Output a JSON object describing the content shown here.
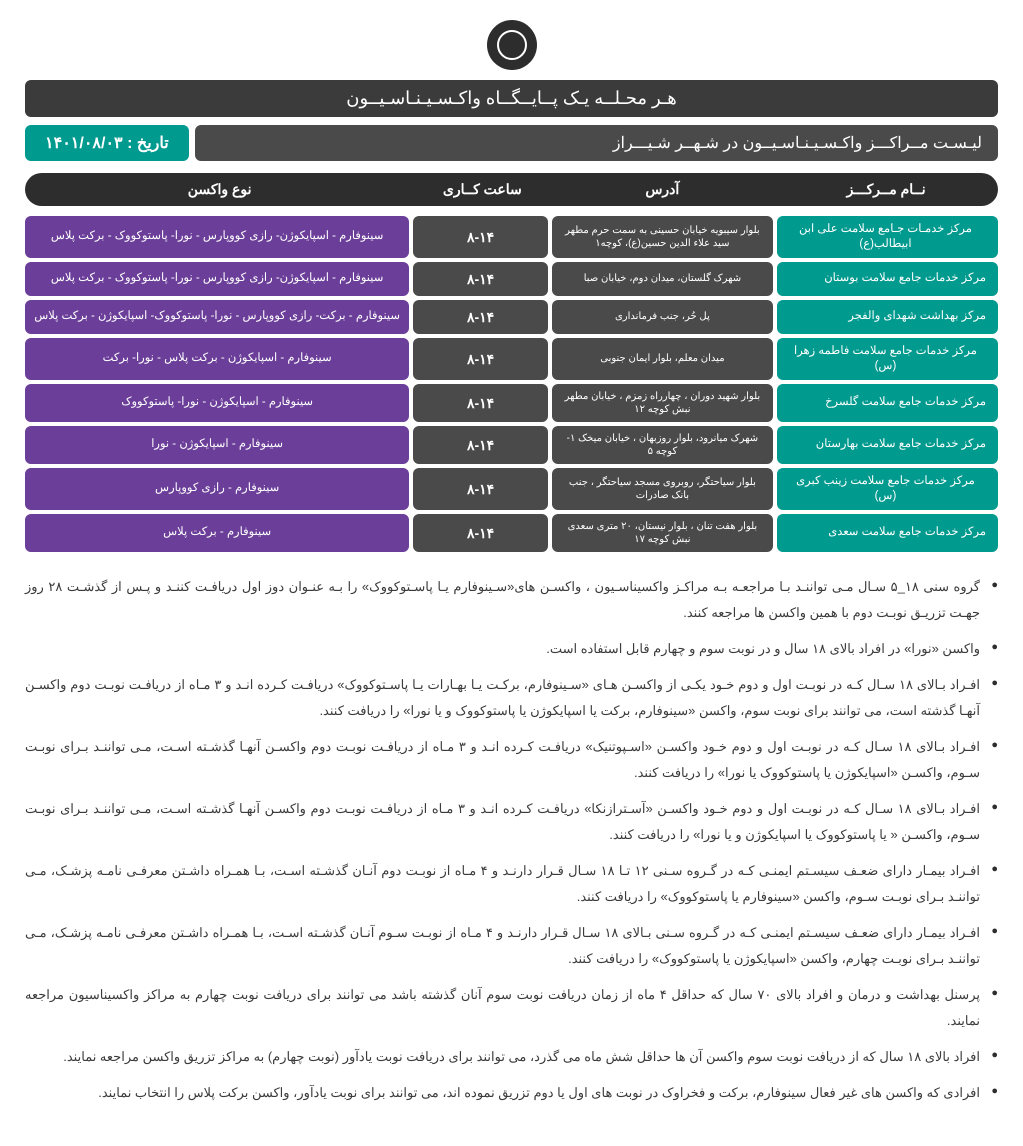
{
  "colors": {
    "headerDark": "#3b3b3b",
    "pillDark": "#2d2d2d",
    "cellGray": "#4a4a4a",
    "teal": "#009a8e",
    "purple": "#6b3e99",
    "pageBg": "#ffffff",
    "text": "#3a3a3a"
  },
  "header": {
    "mainTitle": "هـر محـلــه یـک پــایــگــاه واکـسـیـنـاسـیــون",
    "listTitle": "لیـسـت مــراکـــز واکـسـیـنـاسـیــون در شـهــر شـیـــراز",
    "dateLabel": "تاریخ : ۱۴۰۱/۰۸/۰۳"
  },
  "columns": {
    "name": "نــام مــرکـــز",
    "address": "آدرس",
    "hours": "ساعت کــاری",
    "vaccine": "نوع واکسن"
  },
  "rows": [
    {
      "name": "مرکز خدمـات جـامع سلامت علی ابن ابیطالب(ع)",
      "address": "بلوار سیبویه خیابان حسینی به سمت حرم مطهر سید علاء الدین حسین(ع)، کوچه۱",
      "hours": "۸-۱۴",
      "vaccine": "سینوفارم - اسپایکوژن- رازی کووپارس - نورا- پاستوکووک - برکت پلاس"
    },
    {
      "name": "مرکز خدمات جامع سلامت بوستان",
      "address": "شهرک گلستان، میدان دوم، خیابان صبا",
      "hours": "۸-۱۴",
      "vaccine": "سینوفارم - اسپایکوژن- رازی کووپارس - نورا- پاستوکووک - برکت پلاس"
    },
    {
      "name": "مرکز بهداشت شهدای والفجر",
      "address": "پل حُر، جنب فرمانداری",
      "hours": "۸-۱۴",
      "vaccine": "سینوفارم - برکت- رازی کووپارس - نورا- پاستوکووک- اسپایکوژن - برکت پلاس"
    },
    {
      "name": "مرکز خدمات جامع سلامت فاطمه زهرا (س)",
      "address": "میدان معلم، بلوار ایمان جنوبی",
      "hours": "۸-۱۴",
      "vaccine": "سینوفارم - اسپایکوژن - برکت پلاس - نورا- برکت"
    },
    {
      "name": "مرکز خدمات جامع سلامت گلسرخ",
      "address": "بلوار شهید دوران ، چهارراه زمزم ، خیابان مطهر نبش کوچه ۱۲",
      "hours": "۸-۱۴",
      "vaccine": "سینوفارم - اسپایکوژن - نورا- پاستوکووک"
    },
    {
      "name": "مرکز خدمات جامع سلامت بهارستان",
      "address": "شهرک میانرود، بلوار روزبهان ، خیابان میخک ۱- کوچه ۵",
      "hours": "۸-۱۴",
      "vaccine": "سینوفارم - اسپایکوژن - نورا"
    },
    {
      "name": "مرکز خدمات جامع سلامت زینب کبری (س)",
      "address": "بلوار سیاحتگر، روبروی مسجد سیاحتگر ، جنب بانک صادرات",
      "hours": "۸-۱۴",
      "vaccine": "سینوفارم - رازی کووپارس"
    },
    {
      "name": "مرکز خدمات جامع سلامت سعدی",
      "address": "بلوار هفت تنان ، بلوار نیستان، ۲۰ متری سعدی نبش کوچه ۱۷",
      "hours": "۸-۱۴",
      "vaccine": "سینوفارم - برکت پلاس"
    }
  ],
  "notes": [
    "گروه سنی ۱۸_۵ سـال مـی تواننـد بـا مراجعـه بـه مراکـز واکسیناسـیون ، واکسـن های«سـینوفارم یـا پاسـتوکووک» را بـه عنـوان دوز اول دریافـت کننـد و پـس از گذشـت ۲۸ روز جهـت تزریـق نوبـت دوم با همین واکسن ها مراجعه کنند.",
    "واکسن «نورا» در افراد بالای ۱۸ سال و در نوبت سوم و چهارم قابل استفاده است.",
    "افـراد بـالای ۱۸ سـال کـه در نوبـت اول و دوم خـود یکـی از واکسـن هـای «سـینوفارم، برکـت یـا بهـارات یـا پاسـتوکووک» دریافـت کـرده انـد و ۳ مـاه از دریافـت نوبـت دوم واکسـن آنهـا گذشته است، می توانند برای نوبت سوم، واکسن «سینوفارم، برکت یا اسپایکوژن یا  پاستوکووک و یا نورا» را دریافت کنند.",
    "افـراد بـالای ۱۸ سـال کـه در نوبـت اول و دوم خـود واکسـن «اسـپوتنیک» دریافـت کـرده انـد و ۳ مـاه از دریافـت نوبـت دوم واکسـن آنهـا گذشـته اسـت، مـی تواننـد بـرای نوبـت سـوم،  واکسـن «اسپایکوژن یا  پاستوکووک یا نورا» را دریافت کنند.",
    "افـراد بـالای ۱۸ سـال کـه در نوبـت اول و دوم خـود واکسـن «آسـترازنکا» دریافـت کـرده انـد و ۳ مـاه از دریافـت نوبـت دوم واکسـن آنهـا گذشـته اسـت، مـی تواننـد بـرای نوبـت سـوم، واکسـن « یا  پاستوکووک یا اسپایکوژن و یا نورا» را دریافت کنند.",
    "افـراد بیمـار دارای ضعـف سیسـتم ایمنـی کـه در گـروه سـنی ۱۲ تـا ۱۸ سـال قـرار دارنـد و ۴ مـاه از نوبـت دوم آنـان گذشـته اسـت، بـا همـراه داشـتن معرفـی نامـه پزشـک، مـی تواننـد بـرای نوبـت سـوم، واکسن «سینوفارم یا  پاستوکووک» را دریافت کنند.",
    "افـراد بیمـار دارای ضعـف سیسـتم ایمنـی کـه در گـروه سـنی بـالای ۱۸ سـال قـرار دارنـد و ۴ مـاه از نوبـت سـوم آنـان گذشـته اسـت، بـا همـراه داشـتن معرفـی نامـه پزشـک، مـی تواننـد بـرای نوبـت چهارم، واکسن «اسپایکوژن یا  پاستوکووک» را دریافت کنند.",
    "پرسنل بهداشت و درمان و افراد بالای ۷۰ سال که حداقل ۴ ماه از زمان دریافت نوبت سوم آنان گذشته باشد می توانند برای دریافت نوبت چهارم به مراکز واکسیناسیون مراجعه نمایند.",
    "افراد بالای ۱۸ سال که از دریافت نوبت سوم واکسن آن ها حداقل شش ماه می گذرد، می توانند برای دریافت نوبت یادآور (نوبت چهارم) به مراکز تزریق واکسن مراجعه نمایند.",
    "افرادی که واکسن های غیر فعال  سینوفارم، برکت و فخراوک در نوبت های اول یا دوم تزریق نموده اند، می توانند برای نوبت یادآور، واکسن برکت پلاس را انتخاب نمایند."
  ]
}
